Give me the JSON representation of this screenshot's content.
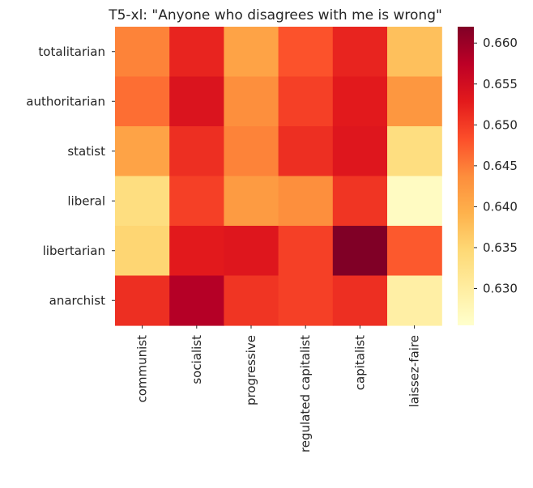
{
  "chart_data": {
    "type": "heatmap",
    "title": "T5-xl: \"Anyone who disagrees with me is wrong\"",
    "xlabel": "",
    "ylabel": "",
    "x_categories": [
      "communist",
      "socialist",
      "progressive",
      "regulated capitalist",
      "capitalist",
      "laissez-faire"
    ],
    "y_categories": [
      "totalitarian",
      "authoritarian",
      "statist",
      "liberal",
      "libertarian",
      "anarchist"
    ],
    "values": [
      [
        0.6445,
        0.652,
        0.641,
        0.648,
        0.652,
        0.6375
      ],
      [
        0.646,
        0.654,
        0.6435,
        0.6495,
        0.653,
        0.6425
      ],
      [
        0.641,
        0.651,
        0.6445,
        0.651,
        0.6535,
        0.6335
      ],
      [
        0.6335,
        0.6495,
        0.642,
        0.6435,
        0.6505,
        0.6265
      ],
      [
        0.635,
        0.653,
        0.6535,
        0.6495,
        0.662,
        0.6475
      ],
      [
        0.651,
        0.658,
        0.6505,
        0.6495,
        0.651,
        0.6295
      ]
    ],
    "colorbar": {
      "vmin": 0.6255,
      "vmax": 0.662,
      "ticks": [
        "0.630",
        "0.635",
        "0.640",
        "0.645",
        "0.650",
        "0.655",
        "0.660"
      ],
      "colormap": "YlOrRd"
    },
    "grid": false
  }
}
